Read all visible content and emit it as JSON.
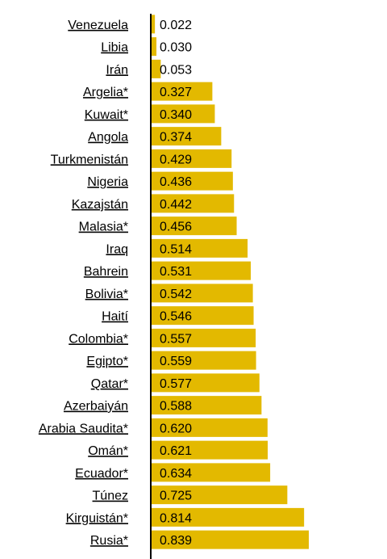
{
  "chart_data": {
    "type": "bar",
    "orientation": "horizontal",
    "categories": [
      "Venezuela",
      "Libia",
      "Irán",
      "Argelia*",
      "Kuwait*",
      "Angola",
      "Turkmenistán",
      "Nigeria",
      "Kazajstán",
      "Malasia*",
      "Iraq",
      "Bahrein",
      "Bolivia*",
      "Haití",
      "Colombia*",
      "Egipto*",
      "Qatar*",
      "Azerbaiyán",
      "Arabia Saudita*",
      "Omán*",
      "Ecuador*",
      "Túnez",
      "Kirguistán*",
      "Rusia*"
    ],
    "values": [
      0.022,
      0.03,
      0.053,
      0.327,
      0.34,
      0.374,
      0.429,
      0.436,
      0.442,
      0.456,
      0.514,
      0.531,
      0.542,
      0.546,
      0.557,
      0.559,
      0.577,
      0.588,
      0.62,
      0.621,
      0.634,
      0.725,
      0.814,
      0.839
    ],
    "value_labels": [
      "0.022",
      "0.030",
      "0.053",
      "0.327",
      "0.340",
      "0.374",
      "0.429",
      "0.436",
      "0.442",
      "0.456",
      "0.514",
      "0.531",
      "0.542",
      "0.546",
      "0.557",
      "0.559",
      "0.577",
      "0.588",
      "0.620",
      "0.621",
      "0.634",
      "0.725",
      "0.814",
      "0.839"
    ],
    "xlim": [
      0,
      1
    ],
    "title": "",
    "xlabel": "",
    "ylabel": "",
    "grid": false,
    "legend": "none",
    "bar_color": "#e3b900",
    "axis_color": "#000000"
  }
}
